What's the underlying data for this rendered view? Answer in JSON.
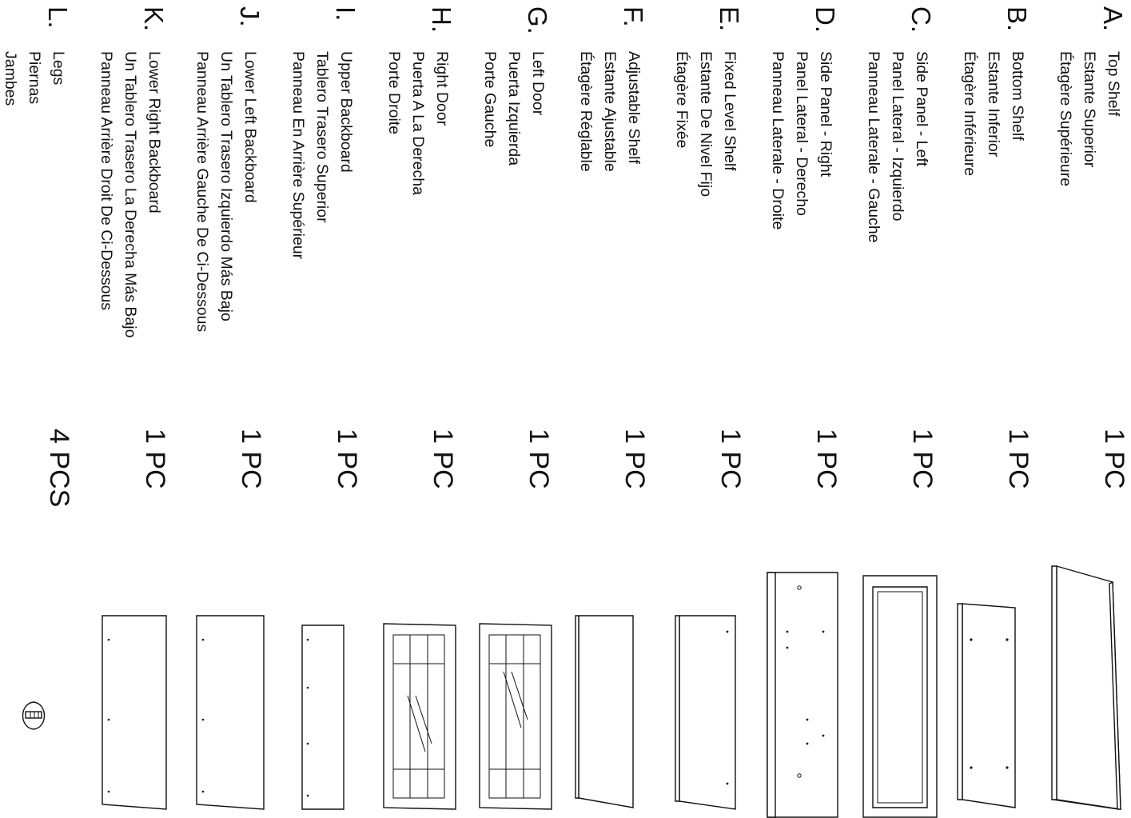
{
  "parts": [
    {
      "letter": "A.",
      "names": [
        "Top Shelf",
        "Estante Superior",
        "Étagère Supérieure"
      ],
      "qty": "1 PC",
      "icon": "shelf-panel-icon"
    },
    {
      "letter": "B.",
      "names": [
        "Bottom Shelf",
        "Estante Inferior",
        "Étagère Inférieure"
      ],
      "qty": "1 PC",
      "icon": "bottom-shelf-icon"
    },
    {
      "letter": "C.",
      "names": [
        "Side Panel - Left",
        "Panel Lateral - Izquierdo",
        "Panneau Laterale - Gauche"
      ],
      "qty": "1 PC",
      "icon": "side-panel-left-icon"
    },
    {
      "letter": "D.",
      "names": [
        "Side Panel - Right",
        "Panel Lateral - Derecho",
        "Panneau Laterale - Droite"
      ],
      "qty": "1 PC",
      "icon": "side-panel-right-icon"
    },
    {
      "letter": "E.",
      "names": [
        "Fixed Level Shelf",
        "Estante De Nivel Fijo",
        "Étagère Fixée"
      ],
      "qty": "1 PC",
      "icon": "fixed-shelf-icon"
    },
    {
      "letter": "F.",
      "names": [
        "Adjustable Shelf",
        "Estante Ajustable",
        "Étagère Réglable"
      ],
      "qty": "1 PC",
      "icon": "adjustable-shelf-icon"
    },
    {
      "letter": "G.",
      "names": [
        "Left Door",
        "Puerta Izquierda",
        "Porte Gauche"
      ],
      "qty": "1 PC",
      "icon": "left-door-icon"
    },
    {
      "letter": "H.",
      "names": [
        "Right Door",
        "Puerta A La Derecha",
        "Porte Droite"
      ],
      "qty": "1 PC",
      "icon": "right-door-icon"
    },
    {
      "letter": "I.",
      "names": [
        "Upper Backboard",
        "Tablero Trasero Superior",
        "Panneau En Arrière Supérieur"
      ],
      "qty": "1 PC",
      "icon": "upper-backboard-icon"
    },
    {
      "letter": "J.",
      "names": [
        "Lower Left Backboard",
        "Un Tablero Trasero Izquierdo Más Bajo",
        "Panneau Arrière Gauche De Ci-Dessous"
      ],
      "qty": "1 PC",
      "icon": "lower-left-backboard-icon"
    },
    {
      "letter": "K.",
      "names": [
        "Lower Right Backboard",
        "Un Tablero Trasero La Derecha Más Bajo",
        "Panneau Arrière Droit De Ci-Dessous"
      ],
      "qty": "1 PC",
      "icon": "lower-right-backboard-icon"
    },
    {
      "letter": "L.",
      "names": [
        "Legs",
        "Piernas",
        "Jambes"
      ],
      "qty": "4 PCS",
      "icon": "leg-icon"
    }
  ]
}
